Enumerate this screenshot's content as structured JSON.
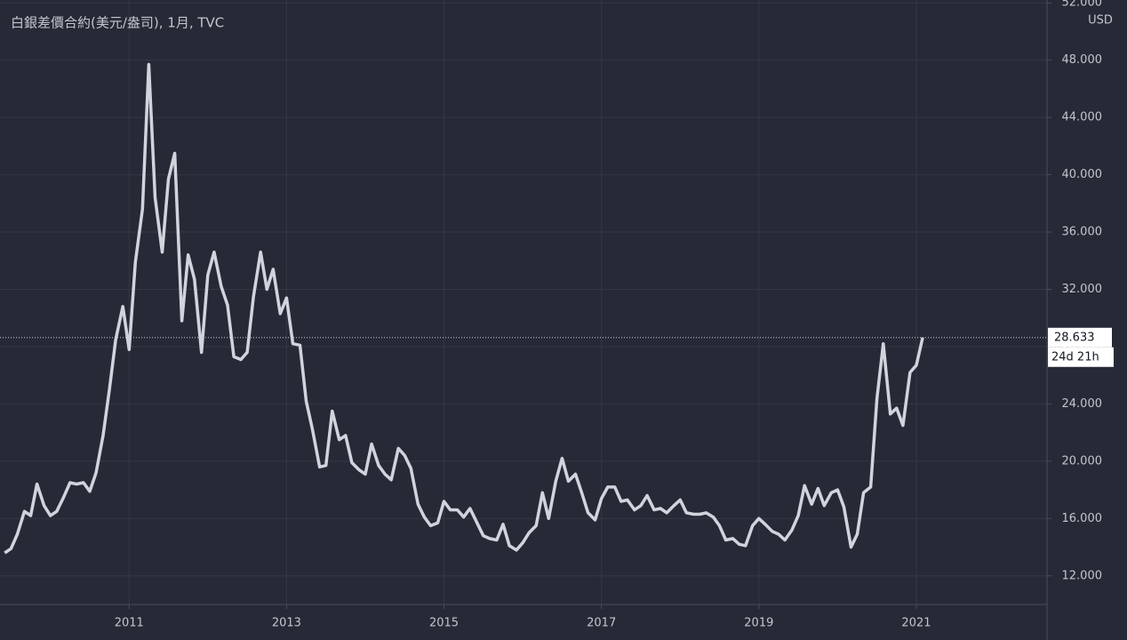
{
  "chart_data": {
    "type": "line",
    "title": "白銀差價合約(美元/盎司), 1月, TVC",
    "currency": "USD",
    "countdown": "24d 21h",
    "color": "#d1d4dc",
    "grid": true,
    "xlim": [
      2009.36,
      2022.66
    ],
    "xticks": [
      2011,
      2013,
      2015,
      2017,
      2019,
      2021
    ],
    "ylim": [
      10,
      52.2
    ],
    "yticks": [
      {
        "value": 12,
        "label": "12.000"
      },
      {
        "value": 16,
        "label": "16.000"
      },
      {
        "value": 20,
        "label": "20.000"
      },
      {
        "value": 24,
        "label": "24.000"
      },
      {
        "value": 28,
        "label": "28.000"
      },
      {
        "value": 32,
        "label": "32.000"
      },
      {
        "value": 36,
        "label": "36.000"
      },
      {
        "value": 40,
        "label": "40.000"
      },
      {
        "value": 44,
        "label": "44.000"
      },
      {
        "value": 48,
        "label": "48.000"
      },
      {
        "value": 52,
        "label": "52.000"
      }
    ],
    "x": [
      2009.42,
      2009.5,
      2009.58,
      2009.67,
      2009.75,
      2009.83,
      2009.92,
      2010,
      2010.08,
      2010.17,
      2010.25,
      2010.33,
      2010.42,
      2010.5,
      2010.58,
      2010.67,
      2010.75,
      2010.83,
      2010.92,
      2011,
      2011.08,
      2011.17,
      2011.25,
      2011.33,
      2011.42,
      2011.5,
      2011.58,
      2011.67,
      2011.75,
      2011.83,
      2011.92,
      2012,
      2012.08,
      2012.17,
      2012.25,
      2012.33,
      2012.42,
      2012.5,
      2012.58,
      2012.67,
      2012.75,
      2012.83,
      2012.92,
      2013,
      2013.08,
      2013.17,
      2013.25,
      2013.33,
      2013.42,
      2013.5,
      2013.58,
      2013.67,
      2013.75,
      2013.83,
      2013.92,
      2014,
      2014.08,
      2014.17,
      2014.25,
      2014.33,
      2014.42,
      2014.5,
      2014.58,
      2014.67,
      2014.75,
      2014.83,
      2014.92,
      2015,
      2015.08,
      2015.17,
      2015.25,
      2015.33,
      2015.42,
      2015.5,
      2015.58,
      2015.67,
      2015.75,
      2015.83,
      2015.92,
      2016,
      2016.08,
      2016.17,
      2016.25,
      2016.33,
      2016.42,
      2016.5,
      2016.58,
      2016.67,
      2016.75,
      2016.83,
      2016.92,
      2017,
      2017.08,
      2017.17,
      2017.25,
      2017.33,
      2017.42,
      2017.5,
      2017.58,
      2017.67,
      2017.75,
      2017.83,
      2017.92,
      2018,
      2018.08,
      2018.17,
      2018.25,
      2018.33,
      2018.42,
      2018.5,
      2018.58,
      2018.67,
      2018.75,
      2018.83,
      2018.92,
      2019,
      2019.08,
      2019.17,
      2019.25,
      2019.33,
      2019.42,
      2019.5,
      2019.58,
      2019.67,
      2019.75,
      2019.83,
      2019.92,
      2020,
      2020.08,
      2020.17,
      2020.25,
      2020.33,
      2020.42,
      2020.5,
      2020.58,
      2020.67,
      2020.75,
      2020.83,
      2020.92,
      2021,
      2021.08
    ],
    "values": [
      13.6,
      13.9,
      14.9,
      16.5,
      16.2,
      18.4,
      16.9,
      16.2,
      16.5,
      17.5,
      18.5,
      18.4,
      18.5,
      17.9,
      19.2,
      21.8,
      25.0,
      28.5,
      30.8,
      27.8,
      33.9,
      37.6,
      47.7,
      38.4,
      34.6,
      39.7,
      41.5,
      29.8,
      34.4,
      32.7,
      27.6,
      33.0,
      34.6,
      32.2,
      30.9,
      27.3,
      27.1,
      27.6,
      31.5,
      34.6,
      32.0,
      33.4,
      30.3,
      31.4,
      28.2,
      28.1,
      24.2,
      22.2,
      19.6,
      19.7,
      23.5,
      21.5,
      21.8,
      19.9,
      19.4,
      19.1,
      21.2,
      19.7,
      19.1,
      18.7,
      20.9,
      20.4,
      19.5,
      17.0,
      16.1,
      15.5,
      15.7,
      17.2,
      16.6,
      16.6,
      16.1,
      16.7,
      15.7,
      14.8,
      14.6,
      14.5,
      15.6,
      14.1,
      13.8,
      14.3,
      15.0,
      15.5,
      17.8,
      16.0,
      18.6,
      20.2,
      18.6,
      19.1,
      17.8,
      16.4,
      15.9,
      17.4,
      18.2,
      18.2,
      17.2,
      17.3,
      16.6,
      16.9,
      17.6,
      16.6,
      16.7,
      16.4,
      16.9,
      17.3,
      16.4,
      16.3,
      16.3,
      16.4,
      16.1,
      15.5,
      14.5,
      14.6,
      14.2,
      14.1,
      15.5,
      16.0,
      15.6,
      15.1,
      14.9,
      14.5,
      15.2,
      16.2,
      18.3,
      17.0,
      18.1,
      16.9,
      17.8,
      18.0,
      16.8,
      14.0,
      14.9,
      17.8,
      18.2,
      24.4,
      28.2,
      23.3,
      23.7,
      22.5,
      26.2,
      26.7,
      28.633
    ]
  }
}
